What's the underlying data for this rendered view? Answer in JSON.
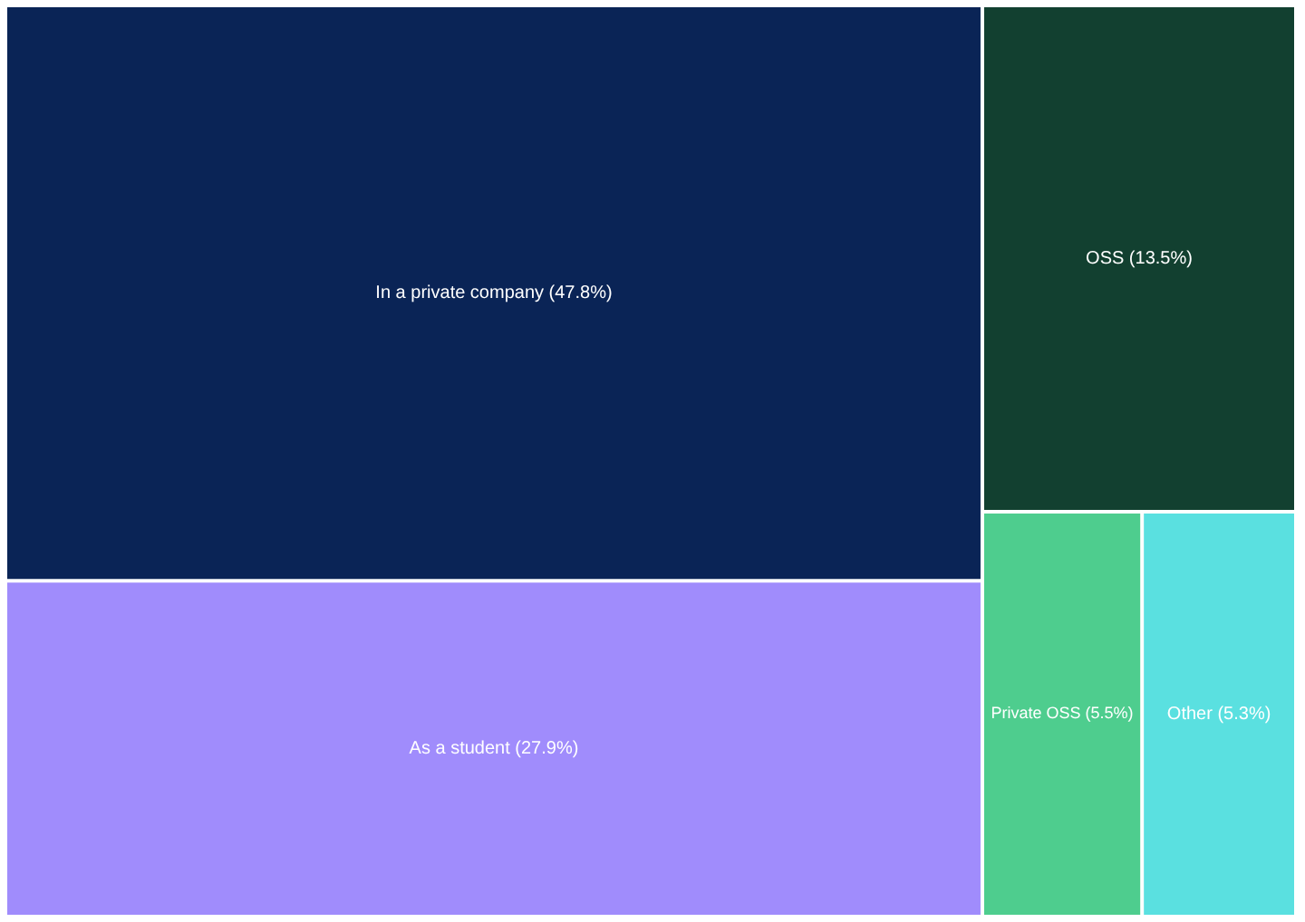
{
  "chart_data": {
    "type": "other",
    "categories": [
      "In a private company",
      "As a student",
      "OSS",
      "Private OSS",
      "Other"
    ],
    "values": [
      47.8,
      27.9,
      13.5,
      5.5,
      5.3
    ],
    "value_labels": [
      "(47.8%)",
      "(27.9%)",
      "(13.5%)",
      "(5.5%)",
      "(5.3%)"
    ],
    "colors": [
      "#0a2456",
      "#a08cfc",
      "#124030",
      "#4ecd8e",
      "#5ae0e0"
    ]
  }
}
